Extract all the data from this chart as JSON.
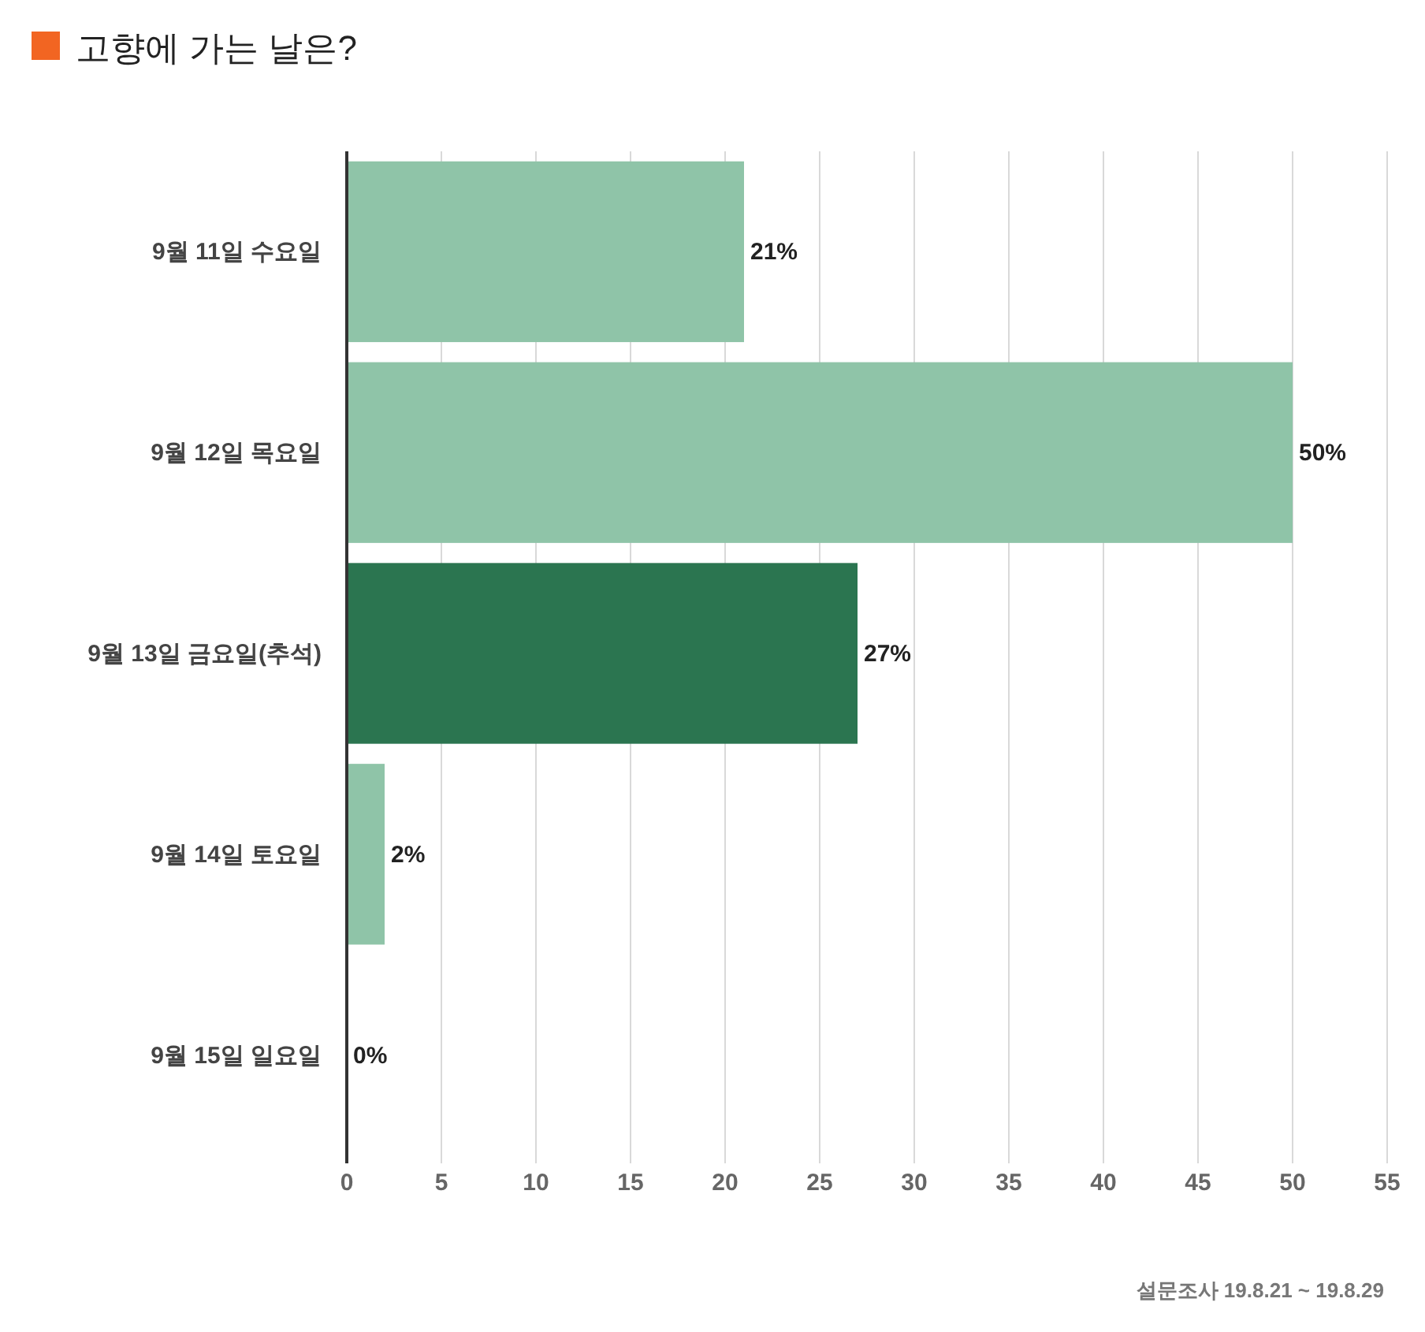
{
  "chart_data": {
    "type": "bar",
    "orientation": "horizontal",
    "title": "고향에 가는 날은?",
    "categories": [
      "9월 11일 수요일",
      "9월 12일 목요일",
      "9월 13일 금요일(추석)",
      "9월 14일 토요일",
      "9월 15일 일요일"
    ],
    "values": [
      21,
      50,
      27,
      2,
      0
    ],
    "colors": [
      "#8fc4a8",
      "#8fc4a8",
      "#2b7550",
      "#8fc4a8",
      "#8fc4a8"
    ],
    "value_labels": [
      "21%",
      "50%",
      "27%",
      "2%",
      "0%"
    ],
    "xlim": [
      0,
      55
    ],
    "xticks": [
      0,
      5,
      10,
      15,
      20,
      25,
      30,
      35,
      40,
      45,
      50,
      55
    ],
    "grid": "x",
    "annotations": [
      "설문조사 19.8.21 ~ 19.8.29"
    ]
  }
}
